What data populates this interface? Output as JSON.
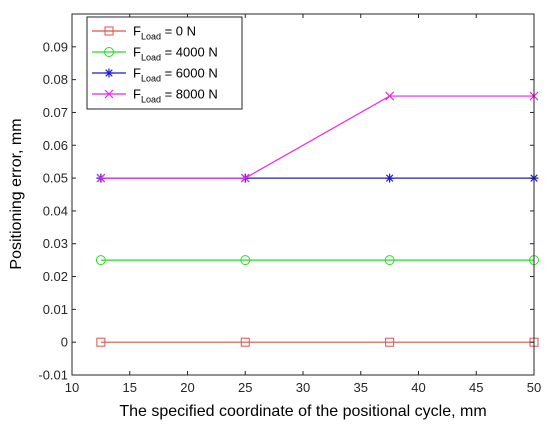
{
  "chart_data": {
    "type": "line",
    "xlabel": "The specified coordinate of the positional cycle, mm",
    "ylabel": "Positioning error, mm",
    "xlim": [
      10,
      50
    ],
    "ylim": [
      -0.01,
      0.1
    ],
    "xticks": [
      10,
      15,
      20,
      25,
      30,
      35,
      40,
      45,
      50
    ],
    "yticks": [
      -0.01,
      0,
      0.01,
      0.02,
      0.03,
      0.04,
      0.05,
      0.06,
      0.07,
      0.08,
      0.09
    ],
    "xtick_labels": [
      "10",
      "15",
      "20",
      "25",
      "30",
      "35",
      "40",
      "45",
      "50"
    ],
    "ytick_labels": [
      "-0.01",
      "0",
      "0.01",
      "0.02",
      "0.03",
      "0.04",
      "0.05",
      "0.06",
      "0.07",
      "0.08",
      "0.09"
    ],
    "x": [
      12.5,
      25,
      37.5,
      50
    ],
    "legend_position": "top-left",
    "grid": false,
    "series": [
      {
        "name": "F_Load = 0 N",
        "legend_main": "F",
        "legend_sub": "Load",
        "legend_rest": " = 0 N",
        "color": "#e3504a",
        "marker": "square",
        "values": [
          0,
          0,
          0,
          0
        ]
      },
      {
        "name": "F_Load = 4000 N",
        "legend_main": "F",
        "legend_sub": "Load",
        "legend_rest": " = 4000 N",
        "color": "#22dd22",
        "marker": "circle",
        "values": [
          0.025,
          0.025,
          0.025,
          0.025
        ]
      },
      {
        "name": "F_Load = 6000 N",
        "legend_main": "F",
        "legend_sub": "Load",
        "legend_rest": " = 6000 N",
        "color": "#1f1fcc",
        "marker": "asterisk",
        "values": [
          0.05,
          0.05,
          0.05,
          0.05
        ]
      },
      {
        "name": "F_Load = 8000 N",
        "legend_main": "F",
        "legend_sub": "Load",
        "legend_rest": " = 8000 N",
        "color": "#ee22ee",
        "marker": "x",
        "values": [
          0.05,
          0.05,
          0.075,
          0.075
        ]
      }
    ]
  }
}
